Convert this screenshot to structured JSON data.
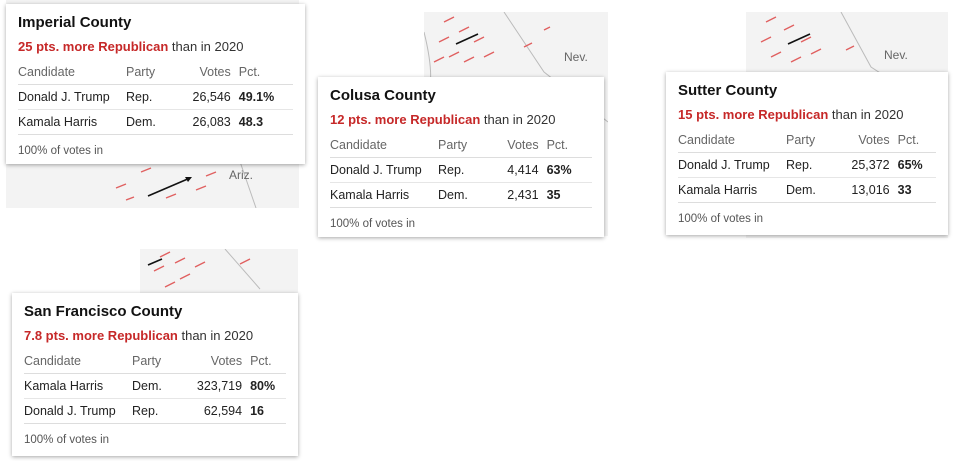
{
  "cards": [
    {
      "county": "Imperial County",
      "shift_value": "25 pts. more Republican",
      "shift_suffix": " than in 2020",
      "headers": {
        "candidate": "Candidate",
        "party": "Party",
        "votes": "Votes",
        "pct": "Pct."
      },
      "rows": [
        {
          "candidate": "Donald J. Trump",
          "party": "Rep.",
          "votes": "26,546",
          "pct": "49.1%"
        },
        {
          "candidate": "Kamala Harris",
          "party": "Dem.",
          "votes": "26,083",
          "pct": "48.3"
        }
      ],
      "footer": "100% of votes in"
    },
    {
      "county": "Colusa County",
      "shift_value": "12 pts. more Republican",
      "shift_suffix": " than in 2020",
      "headers": {
        "candidate": "Candidate",
        "party": "Party",
        "votes": "Votes",
        "pct": "Pct."
      },
      "rows": [
        {
          "candidate": "Donald J. Trump",
          "party": "Rep.",
          "votes": "4,414",
          "pct": "63%"
        },
        {
          "candidate": "Kamala Harris",
          "party": "Dem.",
          "votes": "2,431",
          "pct": "35"
        }
      ],
      "footer": "100% of votes in"
    },
    {
      "county": "Sutter County",
      "shift_value": "15 pts. more Republican",
      "shift_suffix": " than in 2020",
      "headers": {
        "candidate": "Candidate",
        "party": "Party",
        "votes": "Votes",
        "pct": "Pct."
      },
      "rows": [
        {
          "candidate": "Donald J. Trump",
          "party": "Rep.",
          "votes": "25,372",
          "pct": "65%"
        },
        {
          "candidate": "Kamala Harris",
          "party": "Dem.",
          "votes": "13,016",
          "pct": "33"
        }
      ],
      "footer": "100% of votes in"
    },
    {
      "county": "San Francisco County",
      "shift_value": "7.8 pts. more Republican",
      "shift_suffix": " than in 2020",
      "headers": {
        "candidate": "Candidate",
        "party": "Party",
        "votes": "Votes",
        "pct": "Pct."
      },
      "rows": [
        {
          "candidate": "Kamala Harris",
          "party": "Dem.",
          "votes": "323,719",
          "pct": "80%"
        },
        {
          "candidate": "Donald J. Trump",
          "party": "Rep.",
          "votes": "62,594",
          "pct": "16"
        }
      ],
      "footer": "100% of votes in"
    }
  ],
  "map_labels": {
    "ariz": "Ariz.",
    "nev_1": "Nev.",
    "nev_2": "Nev."
  },
  "colors": {
    "republican": "#c62828",
    "arrow_red": "#e06060",
    "arrow_black": "#111111",
    "map_bg": "#f3f3f3"
  }
}
